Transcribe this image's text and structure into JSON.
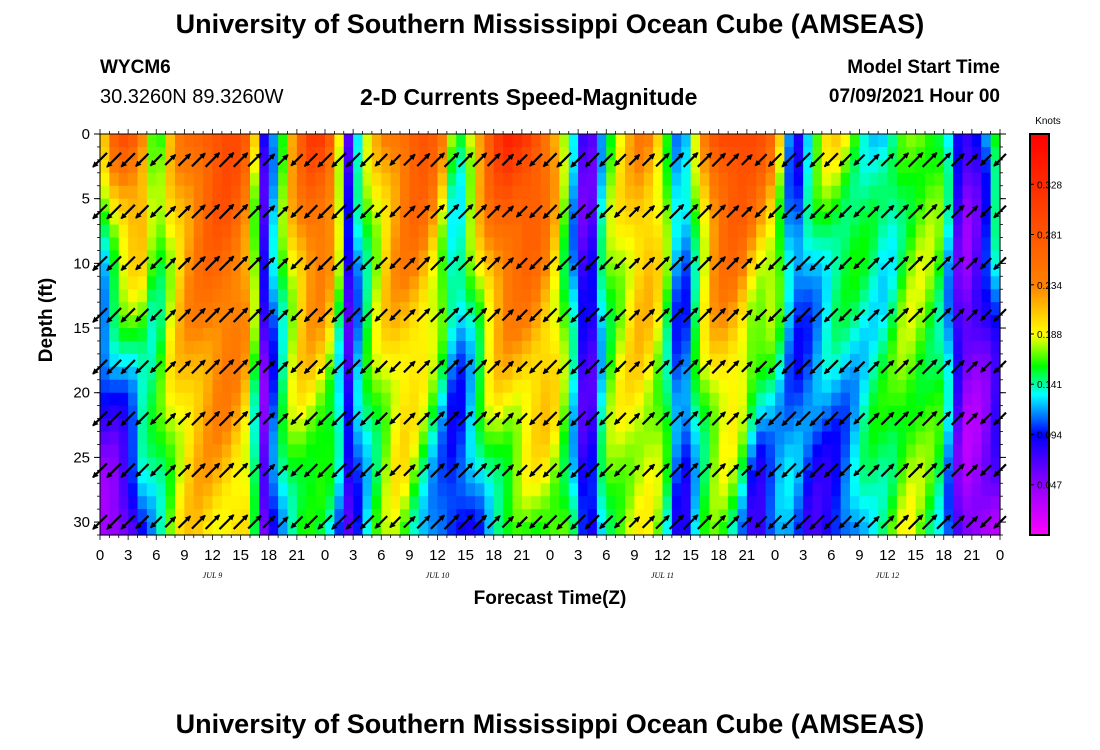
{
  "header": {
    "title_top": "University of Southern Mississippi Ocean Cube (AMSEAS)",
    "title_bottom": "University of Southern Mississippi Ocean Cube (AMSEAS)",
    "station": "WYCM6",
    "coords": "30.3260N  89.3260W",
    "plot_title": "2-D Currents Speed-Magnitude",
    "model_label": "Model Start Time",
    "model_time": "07/09/2021 Hour 00"
  },
  "chart_data": {
    "type": "heatmap",
    "title": "2-D Currents Speed-Magnitude",
    "xlabel": "Forecast Time(Z)",
    "ylabel": "Depth (ft)",
    "x_range_hours": [
      0,
      96
    ],
    "ylim": [
      0,
      31
    ],
    "y_ticks": [
      0,
      5,
      10,
      15,
      20,
      25,
      30
    ],
    "x_tick_labels": [
      "0",
      "3",
      "6",
      "9",
      "12",
      "15",
      "18",
      "21",
      "0",
      "3",
      "6",
      "9",
      "12",
      "15",
      "18",
      "21",
      "0",
      "3",
      "6",
      "9",
      "12",
      "15",
      "18",
      "21",
      "0",
      "3",
      "6",
      "9",
      "12",
      "15",
      "18",
      "21",
      "0"
    ],
    "day_labels": [
      {
        "label": "JUL 9",
        "hour": 12
      },
      {
        "label": "JUL 10",
        "hour": 36
      },
      {
        "label": "JUL 11",
        "hour": 60
      },
      {
        "label": "JUL 12",
        "hour": 84
      }
    ],
    "colorbar": {
      "unit": "Knots",
      "ticks": [
        0.328,
        0.281,
        0.234,
        0.188,
        0.141,
        0.094,
        0.047
      ],
      "tick_labels": [
        "0.328",
        "0.281",
        "0.234",
        "0.188",
        "0.141",
        "0.094",
        "0.047"
      ],
      "range": [
        0,
        0.375
      ]
    },
    "speed_profile": {
      "hours": [
        0,
        1.5,
        3,
        4.5,
        6,
        8,
        10,
        12,
        14,
        16,
        17.5,
        19,
        21,
        23,
        25,
        26.5,
        28,
        30,
        32,
        34,
        36,
        38,
        40,
        42,
        43.5,
        46,
        48,
        50,
        52,
        54,
        56,
        58,
        60,
        62,
        64,
        66,
        68,
        70,
        72,
        74,
        76,
        78,
        80,
        82,
        84,
        86,
        88,
        90,
        92,
        94,
        96
      ],
      "surface_knots": [
        0.18,
        0.26,
        0.3,
        0.25,
        0.15,
        0.22,
        0.26,
        0.3,
        0.3,
        0.25,
        0.09,
        0.15,
        0.25,
        0.32,
        0.27,
        0.08,
        0.16,
        0.22,
        0.26,
        0.3,
        0.26,
        0.14,
        0.22,
        0.3,
        0.33,
        0.32,
        0.25,
        0.14,
        0.04,
        0.16,
        0.2,
        0.24,
        0.2,
        0.1,
        0.2,
        0.3,
        0.32,
        0.3,
        0.24,
        0.08,
        0.16,
        0.2,
        0.18,
        0.14,
        0.12,
        0.16,
        0.18,
        0.16,
        0.05,
        0.1,
        0.2
      ],
      "bottom_knots": [
        0.04,
        0.03,
        0.04,
        0.1,
        0.14,
        0.18,
        0.2,
        0.2,
        0.2,
        0.18,
        0.05,
        0.12,
        0.16,
        0.14,
        0.12,
        0.08,
        0.12,
        0.16,
        0.18,
        0.14,
        0.1,
        0.08,
        0.1,
        0.14,
        0.14,
        0.16,
        0.18,
        0.16,
        0.06,
        0.16,
        0.18,
        0.18,
        0.16,
        0.08,
        0.14,
        0.16,
        0.14,
        0.06,
        0.1,
        0.12,
        0.08,
        0.08,
        0.1,
        0.14,
        0.16,
        0.18,
        0.16,
        0.14,
        0.04,
        0.03,
        0.04
      ]
    }
  }
}
